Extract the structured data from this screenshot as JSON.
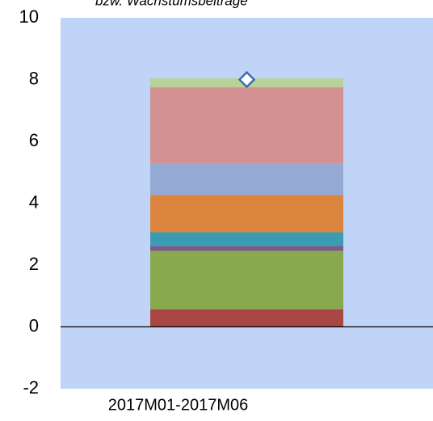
{
  "chart_data": {
    "type": "bar",
    "stacked": true,
    "subtitle": "bzw. Wachstumsbeiträge",
    "categories": [
      "2017M01-2017M06"
    ],
    "series": [
      {
        "color": "#a94745",
        "values": [
          0.57
        ]
      },
      {
        "color": "#8aa84d",
        "values": [
          1.89
        ]
      },
      {
        "color": "#7a5a8a",
        "values": [
          0.16
        ]
      },
      {
        "color": "#3a9cb3",
        "values": [
          0.44
        ]
      },
      {
        "color": "#dc853f",
        "values": [
          1.21
        ]
      },
      {
        "color": "#95aad2",
        "values": [
          1.02
        ]
      },
      {
        "color": "#d39291",
        "values": [
          2.46
        ]
      },
      {
        "color": "#b9d097",
        "values": [
          0.29
        ]
      },
      {
        "type": "scatter",
        "marker": "diamond",
        "color": "#3d6cb5",
        "values": [
          8.0
        ]
      }
    ],
    "ylim": [
      -2,
      10
    ],
    "yticks": [
      -2,
      0,
      2,
      4,
      6,
      8,
      10
    ],
    "background": "#c0d4f8",
    "grid": false
  }
}
